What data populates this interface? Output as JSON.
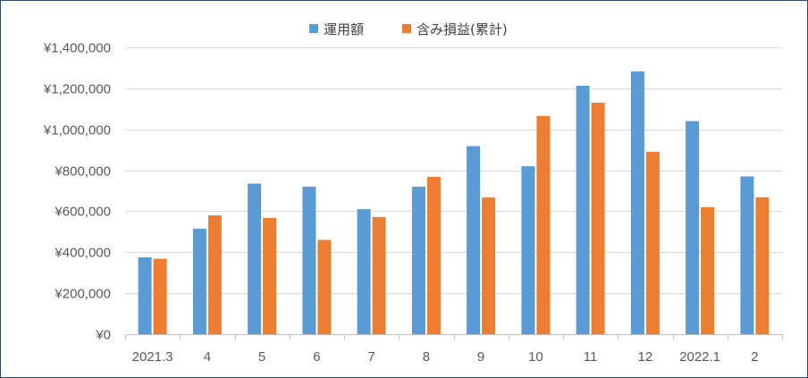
{
  "chart_data": {
    "type": "bar",
    "title": "",
    "xlabel": "",
    "ylabel": "",
    "categories": [
      "2021.3",
      "4",
      "5",
      "6",
      "7",
      "8",
      "9",
      "10",
      "11",
      "12",
      "2022.1",
      "2"
    ],
    "series": [
      {
        "name": "運用額",
        "color": "#5b9bd5",
        "values": [
          375000,
          515000,
          735000,
          720000,
          610000,
          720000,
          918000,
          820000,
          1213000,
          1283000,
          1040000,
          770000
        ]
      },
      {
        "name": "含み損益(累計)",
        "color": "#ed7d31",
        "values": [
          368000,
          580000,
          568000,
          460000,
          572000,
          768000,
          668000,
          1065000,
          1130000,
          890000,
          620000,
          668000
        ]
      }
    ],
    "ylim": [
      0,
      1400000
    ],
    "yticks": [
      0,
      200000,
      400000,
      600000,
      800000,
      1000000,
      1200000,
      1400000
    ],
    "ytick_labels": [
      "¥0",
      "¥200,000",
      "¥400,000",
      "¥600,000",
      "¥800,000",
      "¥1,000,000",
      "¥1,200,000",
      "¥1,400,000"
    ],
    "grid": true,
    "legend_position": "top-center"
  }
}
